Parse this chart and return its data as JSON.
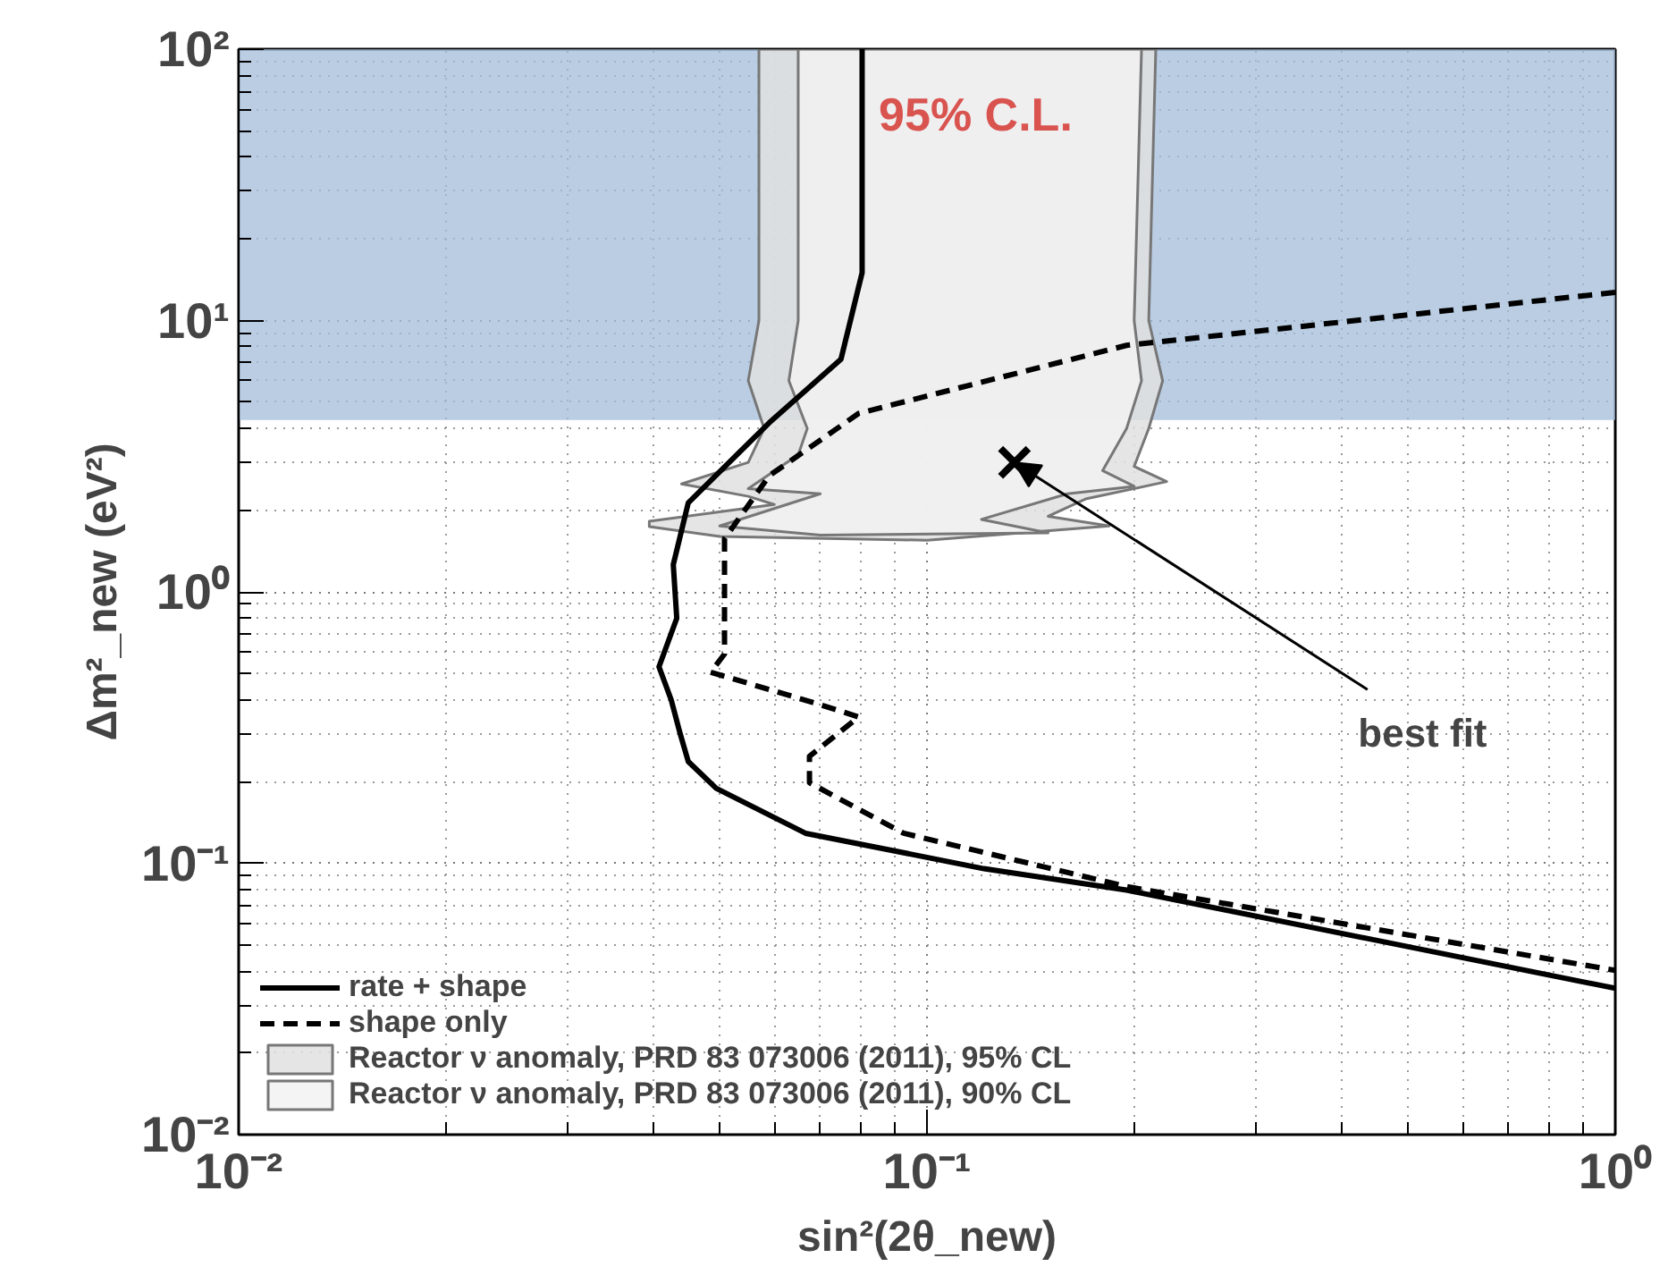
{
  "chart_data": {
    "type": "line",
    "xlabel": "sin²(2θ_new)",
    "ylabel": "Δm²_new (eV²)",
    "log": "xy",
    "xlim": [
      0.01,
      1
    ],
    "ylim": [
      0.01,
      100
    ],
    "xticks": [
      {
        "value": 0.01,
        "label": "10⁻²"
      },
      {
        "value": 0.1,
        "label": "10⁻¹"
      },
      {
        "value": 1,
        "label": "10⁰"
      }
    ],
    "yticks": [
      {
        "value": 0.01,
        "label": "10⁻²"
      },
      {
        "value": 0.1,
        "label": "10⁻¹"
      },
      {
        "value": 1,
        "label": "10⁰"
      },
      {
        "value": 10,
        "label": "10¹"
      },
      {
        "value": 100,
        "label": "10²"
      }
    ],
    "grid": true,
    "legend": "bottom left",
    "bands": [
      {
        "axis": "y",
        "from": 4.3,
        "to": 100,
        "color": "#a3bcd9"
      }
    ],
    "series": [
      {
        "name": "Reactor ν anomaly, PRD 83 073006 (2011), 95% CL",
        "type": "area",
        "color": "#e0e0e0",
        "x": [
          0.057,
          0.057,
          0.055,
          0.058,
          0.055,
          0.044,
          0.055,
          0.06,
          0.0395,
          0.0395,
          0.05,
          0.1,
          0.184,
          0.15,
          0.17,
          0.223,
          0.2,
          0.21,
          0.22,
          0.21,
          0.215
        ],
        "values": [
          100,
          10,
          6,
          4,
          3.0,
          2.5,
          2.25,
          2.1,
          1.82,
          1.74,
          1.6,
          1.55,
          1.75,
          1.9,
          2.2,
          2.55,
          2.9,
          4,
          6,
          10,
          100
        ]
      },
      {
        "name": "Reactor ν anomaly, PRD 83 073006 (2011), 90% CL",
        "type": "area",
        "color": "#f2f2f2",
        "x": [
          0.065,
          0.065,
          0.063,
          0.067,
          0.065,
          0.055,
          0.07,
          0.05,
          0.07,
          0.15,
          0.12,
          0.16,
          0.2,
          0.18,
          0.195,
          0.205,
          0.2,
          0.205
        ],
        "values": [
          100,
          10,
          6,
          4,
          3.2,
          2.4,
          2.3,
          1.75,
          1.62,
          1.65,
          1.85,
          2.3,
          2.45,
          2.8,
          4,
          6,
          10,
          100
        ]
      },
      {
        "name": "rate + shape",
        "color": "#000000",
        "line_style": "solid",
        "x": [
          0.0805,
          0.0805,
          0.075,
          0.059,
          0.045,
          0.0428,
          0.0433,
          0.0408,
          0.0425,
          0.0438,
          0.045,
          0.0494,
          0.0666,
          0.121,
          0.195,
          1
        ],
        "values": [
          100,
          15,
          7.2,
          4.2,
          2.13,
          1.26,
          0.8,
          0.53,
          0.4,
          0.3,
          0.237,
          0.189,
          0.129,
          0.0955,
          0.0796,
          0.0346
        ]
      },
      {
        "name": "shape only",
        "color": "#000000",
        "line_style": "dashed",
        "x": [
          1,
          0.195,
          0.0796,
          0.059,
          0.0508,
          0.0508,
          0.0485,
          0.0686,
          0.0796,
          0.0675,
          0.0675,
          0.0925,
          0.195,
          1
        ],
        "values": [
          12.7,
          8.1,
          4.55,
          2.68,
          1.57,
          0.59,
          0.506,
          0.39,
          0.346,
          0.248,
          0.198,
          0.129,
          0.082,
          0.0403
        ]
      },
      {
        "type": "scatter",
        "marker": "cross",
        "color": "#000000",
        "x": [
          0.134
        ],
        "values": [
          3.0
        ]
      }
    ],
    "annotations": [
      {
        "text": "best fit",
        "x": 0.134,
        "y": 3.0
      },
      "95% C.L."
    ]
  }
}
